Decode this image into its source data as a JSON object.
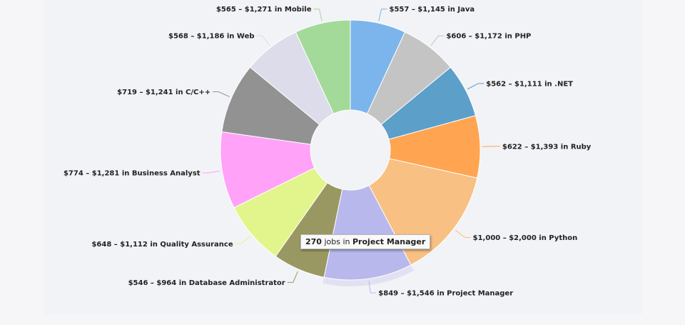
{
  "chart_data": {
    "type": "pie",
    "donut": true,
    "start_angle_deg": 0,
    "direction": "clockwise",
    "slices": [
      {
        "label": "$557 – $1,145 in Java",
        "value": 170,
        "color": "#7cb5ec"
      },
      {
        "label": "$606 – $1,172 in PHP",
        "value": 175,
        "color": "#c4c4c4"
      },
      {
        "label": "$562 – $1,111 in .NET",
        "value": 165,
        "color": "#5c9fc9"
      },
      {
        "label": "$622 – $1,393 in Ruby",
        "value": 190,
        "color": "#ffa552"
      },
      {
        "label": "$1,000 – $2,000 in Python",
        "value": 340,
        "color": "#f8c083"
      },
      {
        "label": "$849 – $1,546 in Project Manager",
        "value": 270,
        "color": "#b8b8ec",
        "highlighted": true
      },
      {
        "label": "$546 – $964 in Database Administrator",
        "value": 160,
        "color": "#9a9862"
      },
      {
        "label": "$648 – $1,112 in Quality Assurance",
        "value": 195,
        "color": "#e2f58c"
      },
      {
        "label": "$774 – $1,281 in Business Analyst",
        "value": 235,
        "color": "#ffa2f8"
      },
      {
        "label": "$719 – $1,241 in C/C++",
        "value": 215,
        "color": "#939292"
      },
      {
        "label": "$568 – $1,186 in Web",
        "value": 175,
        "color": "#dcdcea"
      },
      {
        "label": "$565 – $1,271 in Mobile",
        "value": 170,
        "color": "#a3da9a"
      }
    ]
  },
  "tooltip": {
    "count": "270",
    "unit_text": "jobs in",
    "category": "Project Manager"
  }
}
